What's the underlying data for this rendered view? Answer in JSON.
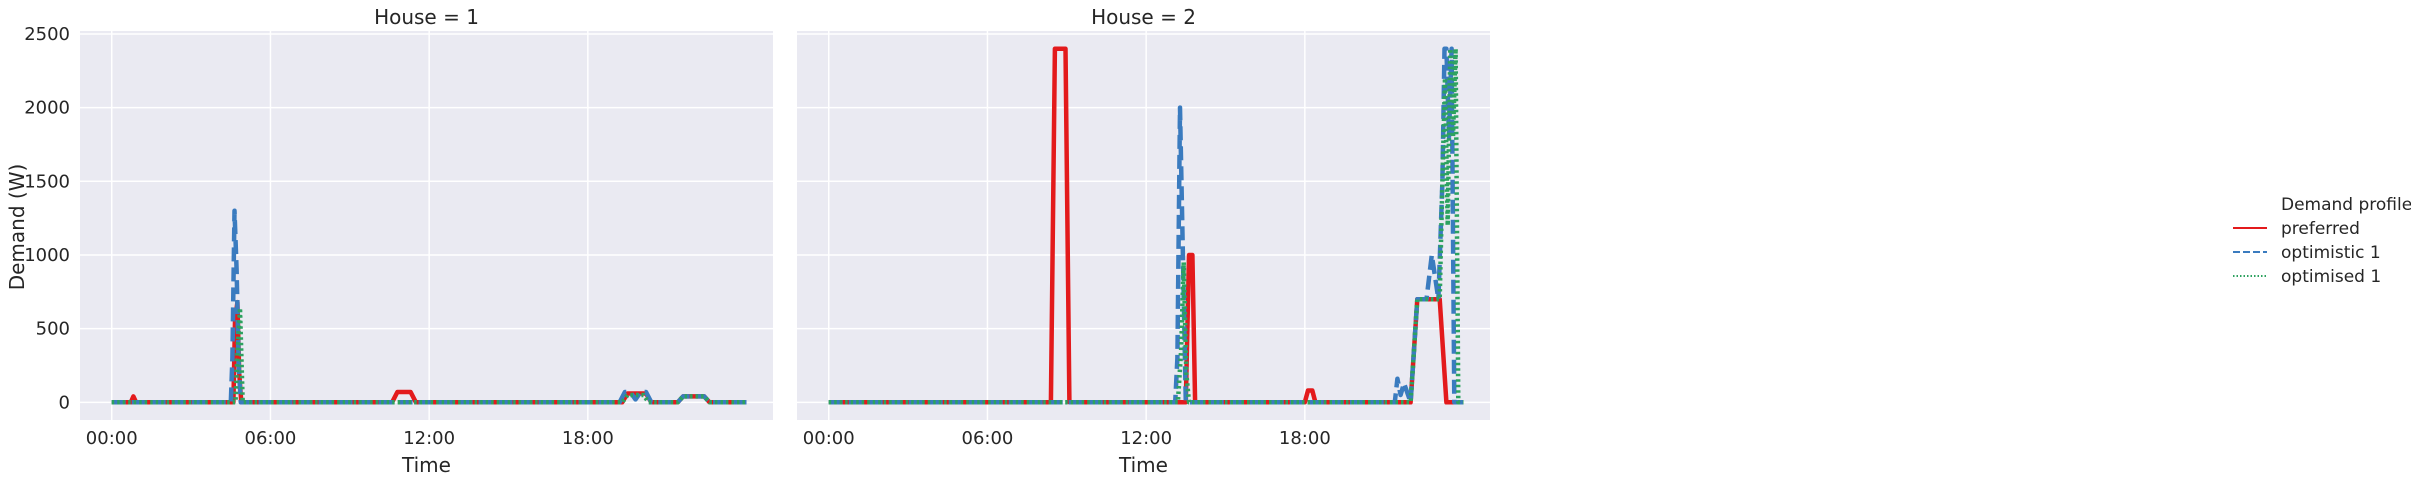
{
  "colors": {
    "preferred": "#e31a1c",
    "optimistic_1": "#3a7bbf",
    "optimised_1": "#2ca25f",
    "panel_bg": "#eaeaf2",
    "grid": "#ffffff",
    "text": "#262626"
  },
  "chart_data": {
    "type": "line",
    "ylabel": "Demand (W)",
    "xlabel": "Time",
    "ylim": [
      -120,
      2520
    ],
    "xlim_hours": [
      -1.2,
      25.0
    ],
    "yticks": [
      0,
      500,
      1000,
      1500,
      2000,
      2500
    ],
    "xticks": [
      "00:00",
      "06:00",
      "12:00",
      "18:00"
    ],
    "xtick_hours": [
      0,
      6,
      12,
      18
    ],
    "grid": true,
    "legend": {
      "title": "Demand profile",
      "placement": "right",
      "entries": [
        "preferred",
        "optimistic 1",
        "optimised 1"
      ]
    },
    "panels": [
      {
        "title": "House = 1",
        "series": [
          {
            "name": "preferred",
            "x": [
              0,
              0.72,
              0.82,
              0.92,
              4.6,
              4.66,
              4.75,
              4.82,
              4.9,
              10.6,
              10.8,
              11.3,
              11.5,
              19.3,
              19.5,
              20.2,
              20.4,
              21.4,
              21.6,
              22.4,
              22.6,
              24.0
            ],
            "y": [
              0,
              0,
              40,
              0,
              0,
              550,
              680,
              200,
              0,
              0,
              70,
              70,
              0,
              0,
              60,
              60,
              0,
              0,
              40,
              40,
              0,
              0
            ]
          },
          {
            "name": "optimistic 1",
            "x": [
              0,
              4.5,
              4.56,
              4.64,
              4.72,
              4.8,
              4.88,
              19.2,
              19.4,
              19.6,
              19.8,
              20.0,
              20.2,
              20.4,
              21.4,
              21.6,
              22.4,
              22.6,
              24.0
            ],
            "y": [
              0,
              0,
              300,
              1300,
              900,
              250,
              0,
              0,
              70,
              70,
              20,
              70,
              70,
              0,
              0,
              40,
              40,
              0,
              0
            ]
          },
          {
            "name": "optimised 1",
            "x": [
              0,
              4.68,
              4.76,
              4.85,
              4.95,
              19.3,
              19.5,
              20.1,
              20.3,
              21.4,
              21.6,
              22.4,
              22.6,
              24.0
            ],
            "y": [
              0,
              0,
              350,
              640,
              0,
              0,
              50,
              50,
              0,
              0,
              40,
              40,
              0,
              0
            ]
          }
        ]
      },
      {
        "title": "House = 2",
        "series": [
          {
            "name": "preferred",
            "x": [
              0,
              8.4,
              8.55,
              8.95,
              9.1,
              13.5,
              13.62,
              13.75,
              13.85,
              18.0,
              18.12,
              18.28,
              18.4,
              22.0,
              22.25,
              23.1,
              23.35,
              24.0
            ],
            "y": [
              0,
              0,
              2400,
              2400,
              0,
              0,
              1000,
              1000,
              0,
              0,
              80,
              80,
              0,
              0,
              700,
              700,
              0,
              0
            ]
          },
          {
            "name": "optimistic 1",
            "x": [
              0,
              13.1,
              13.18,
              13.28,
              13.38,
              13.5,
              21.4,
              21.5,
              21.62,
              21.75,
              22.0,
              22.25,
              22.6,
              22.8,
              23.05,
              23.2,
              23.28,
              23.35,
              23.45,
              23.55,
              23.65,
              24.0
            ],
            "y": [
              0,
              0,
              300,
              2000,
              1100,
              0,
              0,
              160,
              50,
              130,
              0,
              700,
              700,
              1000,
              700,
              1500,
              2400,
              2400,
              1800,
              2400,
              0,
              0
            ]
          },
          {
            "name": "optimised 1",
            "x": [
              0,
              13.2,
              13.32,
              13.42,
              13.52,
              13.62,
              22.0,
              22.25,
              23.1,
              23.2,
              23.3,
              23.4,
              23.5,
              23.6,
              23.7,
              23.8,
              24.0
            ],
            "y": [
              0,
              0,
              350,
              950,
              200,
              0,
              0,
              700,
              700,
              1500,
              2200,
              1200,
              2400,
              1800,
              2400,
              0,
              0
            ]
          }
        ]
      }
    ]
  }
}
